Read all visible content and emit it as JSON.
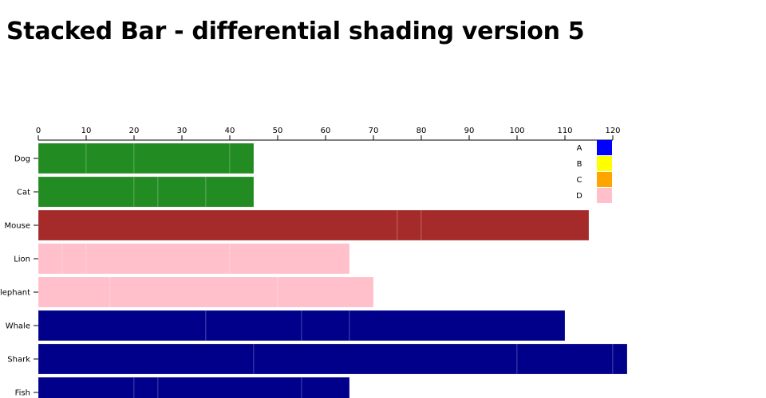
{
  "title": "Stacked Bar - differential shading version 5",
  "chart_data": {
    "type": "bar",
    "orientation": "horizontal",
    "stacked": true,
    "xlim": [
      0,
      120
    ],
    "xticks": [
      0,
      10,
      20,
      30,
      40,
      50,
      60,
      70,
      80,
      90,
      100,
      110,
      120
    ],
    "x_axis_position": "top",
    "categories": [
      "Dog",
      "Cat",
      "Mouse",
      "Lion",
      "Elephant",
      "Whale",
      "Shark",
      "Fish"
    ],
    "bar_colors": {
      "Dog": "#228b22",
      "Cat": "#228b22",
      "Mouse": "#a52a2a",
      "Lion": "#ffc0cb",
      "Elephant": "#ffc0cb",
      "Whale": "#00008b",
      "Shark": "#00008b",
      "Fish": "#00008b"
    },
    "series": [
      {
        "name": "A",
        "values": [
          10,
          20,
          75,
          5,
          15,
          35,
          45,
          20
        ]
      },
      {
        "name": "B",
        "values": [
          10,
          5,
          5,
          5,
          35,
          20,
          55,
          5
        ]
      },
      {
        "name": "C",
        "values": [
          20,
          10,
          35,
          30,
          20,
          10,
          20,
          30
        ]
      },
      {
        "name": "D",
        "values": [
          5,
          10,
          0,
          25,
          0,
          45,
          3,
          10
        ]
      }
    ],
    "legend": {
      "placement": "top-right",
      "entries": [
        {
          "label": "A",
          "color": "#0000ff"
        },
        {
          "label": "B",
          "color": "#ffff00"
        },
        {
          "label": "C",
          "color": "#ffa500"
        },
        {
          "label": "D",
          "color": "#ffc0cb"
        }
      ]
    },
    "grid": false
  }
}
